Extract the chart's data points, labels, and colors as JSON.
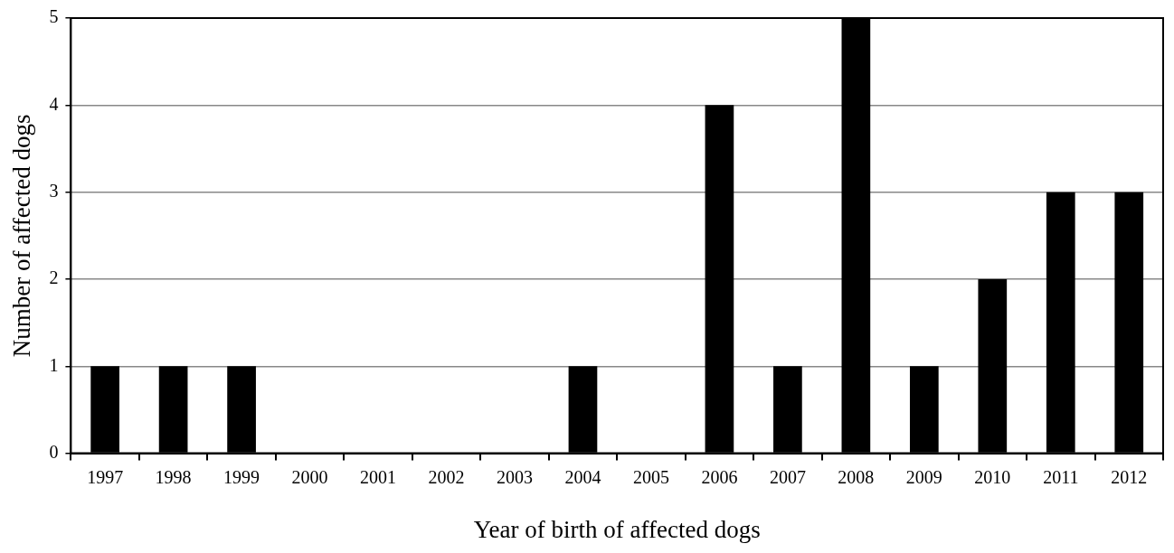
{
  "chart_data": {
    "type": "bar",
    "xlabel": "Year of birth of affected dogs",
    "ylabel": "Number of affected dogs",
    "categories": [
      "1997",
      "1998",
      "1999",
      "2000",
      "2001",
      "2002",
      "2003",
      "2004",
      "2005",
      "2006",
      "2007",
      "2008",
      "2009",
      "2010",
      "2011",
      "2012"
    ],
    "values": [
      1,
      1,
      1,
      0,
      0,
      0,
      0,
      1,
      0,
      4,
      1,
      5,
      1,
      2,
      3,
      3
    ],
    "color": "#000000",
    "ylim": [
      0,
      5
    ],
    "yticks": [
      0,
      1,
      2,
      3,
      4,
      5
    ],
    "grid": "y",
    "legend": false
  }
}
